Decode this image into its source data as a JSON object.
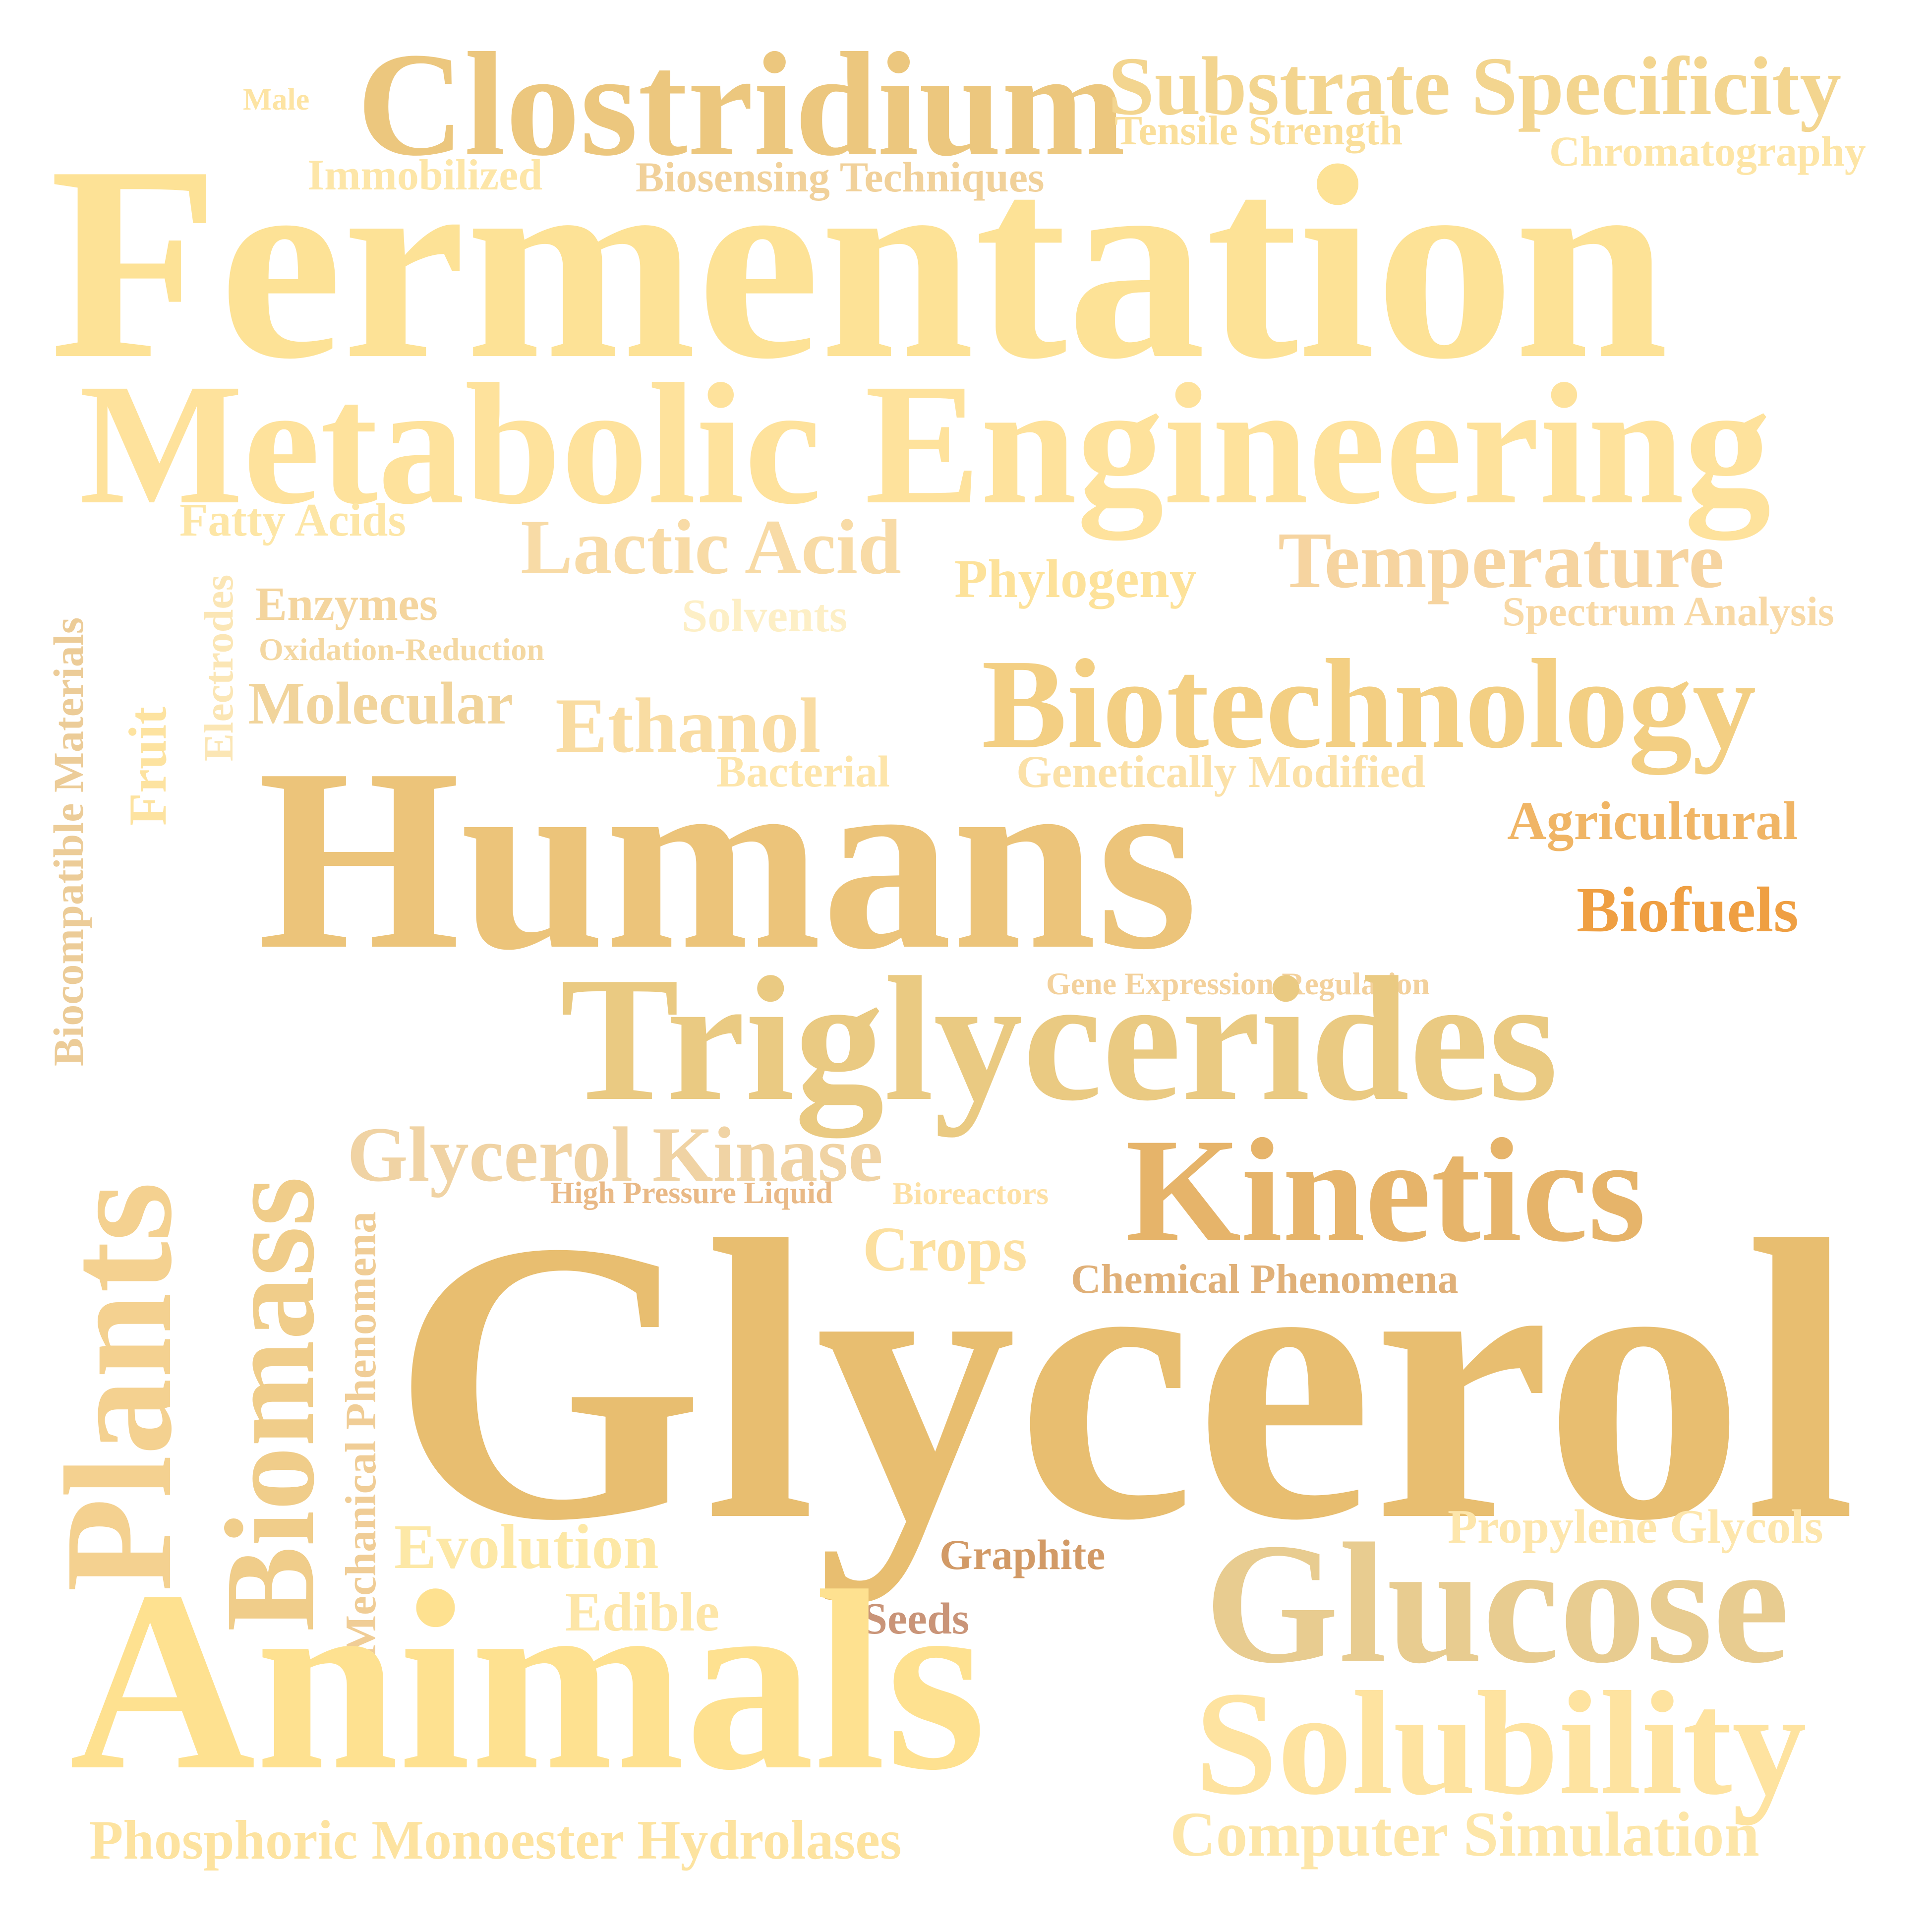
{
  "words": [
    {
      "text": "Male",
      "color": "#fde4a3"
    },
    {
      "text": "Clostridium",
      "color": "#ecc77e"
    },
    {
      "text": "Substrate Specificity",
      "color": "#f3d58f"
    },
    {
      "text": "Tensile Strength",
      "color": "#fadf9b"
    },
    {
      "text": "Immobilized",
      "color": "#fde6a8"
    },
    {
      "text": "Biosensing Techniques",
      "color": "#f1d19a"
    },
    {
      "text": "Chromatography",
      "color": "#fde5a6"
    },
    {
      "text": "Fermentation",
      "color": "#fde296"
    },
    {
      "text": "Metabolic Engineering",
      "color": "#fee29c"
    },
    {
      "text": "Fatty Acids",
      "color": "#fde6a6"
    },
    {
      "text": "Lactic Acid",
      "color": "#f8dba6"
    },
    {
      "text": "Phylogeny",
      "color": "#fde29a"
    },
    {
      "text": "Temperature",
      "color": "#f6d4a0"
    },
    {
      "text": "Enzymes",
      "color": "#f4d59e"
    },
    {
      "text": "Solvents",
      "color": "#fdefc6"
    },
    {
      "text": "Spectrum Analysis",
      "color": "#f8d9a6"
    },
    {
      "text": "Oxidation-Reduction",
      "color": "#f4d8a2"
    },
    {
      "text": "Electrodes",
      "color": "#fbe6b5"
    },
    {
      "text": "Biocompatible Materials",
      "color": "#eccc98"
    },
    {
      "text": "Fruit",
      "color": "#fde3a0"
    },
    {
      "text": "Molecular",
      "color": "#f1d49b"
    },
    {
      "text": "Ethanol",
      "color": "#f9dca2"
    },
    {
      "text": "Biotechnology",
      "color": "#f3cf83"
    },
    {
      "text": "Bacterial",
      "color": "#fde5aa"
    },
    {
      "text": "Genetically Modified",
      "color": "#fbe1a8"
    },
    {
      "text": "Agricultural",
      "color": "#f0b565"
    },
    {
      "text": "Humans",
      "color": "#ecc47a"
    },
    {
      "text": "Biofuels",
      "color": "#ef9f42"
    },
    {
      "text": "Gene Expression Regulation",
      "color": "#f3d19c"
    },
    {
      "text": "Triglycerides",
      "color": "#eaca82"
    },
    {
      "text": "Plants",
      "color": "#f4d190"
    },
    {
      "text": "Biomass",
      "color": "#f0cd8a"
    },
    {
      "text": "Glycerol Kinase",
      "color": "#f0d3a4"
    },
    {
      "text": "Kinetics",
      "color": "#e6b46a"
    },
    {
      "text": "High Pressure Liquid",
      "color": "#e9b986"
    },
    {
      "text": "Bioreactors",
      "color": "#fde0a4"
    },
    {
      "text": "Crops",
      "color": "#fce0a0"
    },
    {
      "text": "Chemical Phenomena",
      "color": "#e0b078"
    },
    {
      "text": "Mechanical Phenomena",
      "color": "#f0cd96"
    },
    {
      "text": "Glycerol",
      "color": "#e8be70"
    },
    {
      "text": "Propylene Glycols",
      "color": "#fde6ac"
    },
    {
      "text": "Evolution",
      "color": "#fde8a6"
    },
    {
      "text": "Graphite",
      "color": "#d29a66"
    },
    {
      "text": "Glucose",
      "color": "#e8cc90"
    },
    {
      "text": "Edible",
      "color": "#fde6a8"
    },
    {
      "text": "Seeds",
      "color": "#c99478"
    },
    {
      "text": "Animals",
      "color": "#fee190"
    },
    {
      "text": "Solubility",
      "color": "#fee3a0"
    },
    {
      "text": "Phosphoric Monoester Hydrolases",
      "color": "#fde3a0"
    },
    {
      "text": "Computer Simulation",
      "color": "#fde6a8"
    }
  ]
}
